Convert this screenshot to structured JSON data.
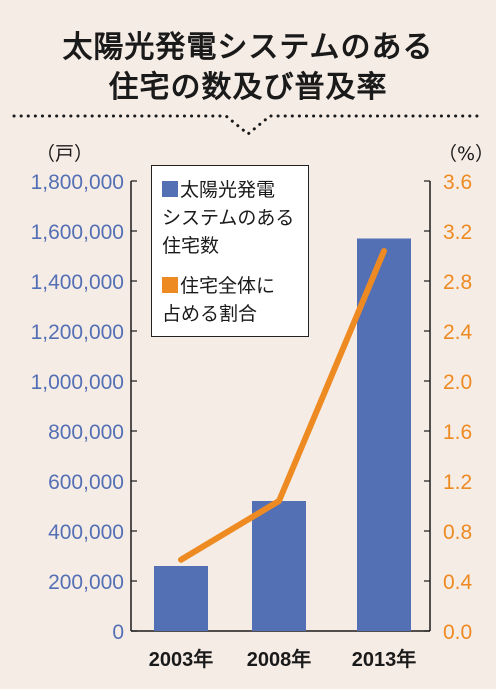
{
  "title": {
    "line1": "太陽光発電システムのある",
    "line2": "住宅の数及び普及率"
  },
  "colors": {
    "bar": "#5470b5",
    "line": "#ee8a22",
    "background": "#f6ece6",
    "divider": "#1a1a1a"
  },
  "chart_data": {
    "type": "bar",
    "title": "太陽光発電システムのある住宅の数及び普及率",
    "categories": [
      "2003年",
      "2008年",
      "2013年"
    ],
    "left_axis": {
      "unit_label": "（戸）",
      "ylim": [
        0,
        1800000
      ],
      "ticks": [
        "0",
        "200,000",
        "400,000",
        "600,000",
        "800,000",
        "1,000,000",
        "1,200,000",
        "1,400,000",
        "1,600,000",
        "1,800,000"
      ]
    },
    "right_axis": {
      "unit_label": "（%）",
      "ylim": [
        0,
        3.6
      ],
      "ticks": [
        "0.0",
        "0.4",
        "0.8",
        "1.2",
        "1.6",
        "2.0",
        "2.4",
        "2.8",
        "3.2",
        "3.6"
      ]
    },
    "series": [
      {
        "name": "太陽光発電システムのある住宅数",
        "type": "bar",
        "axis": "left",
        "values": [
          260000,
          520000,
          1570000
        ]
      },
      {
        "name": "住宅全体に占める割合",
        "type": "line",
        "axis": "right",
        "values": [
          0.57,
          1.04,
          3.04
        ]
      }
    ],
    "legend": {
      "placement": "top-left",
      "bar_label_lines": [
        "太陽光発電",
        "システムのある",
        "住宅数"
      ],
      "line_label_lines": [
        "住宅全体に",
        "占める割合"
      ]
    },
    "grid": false
  }
}
